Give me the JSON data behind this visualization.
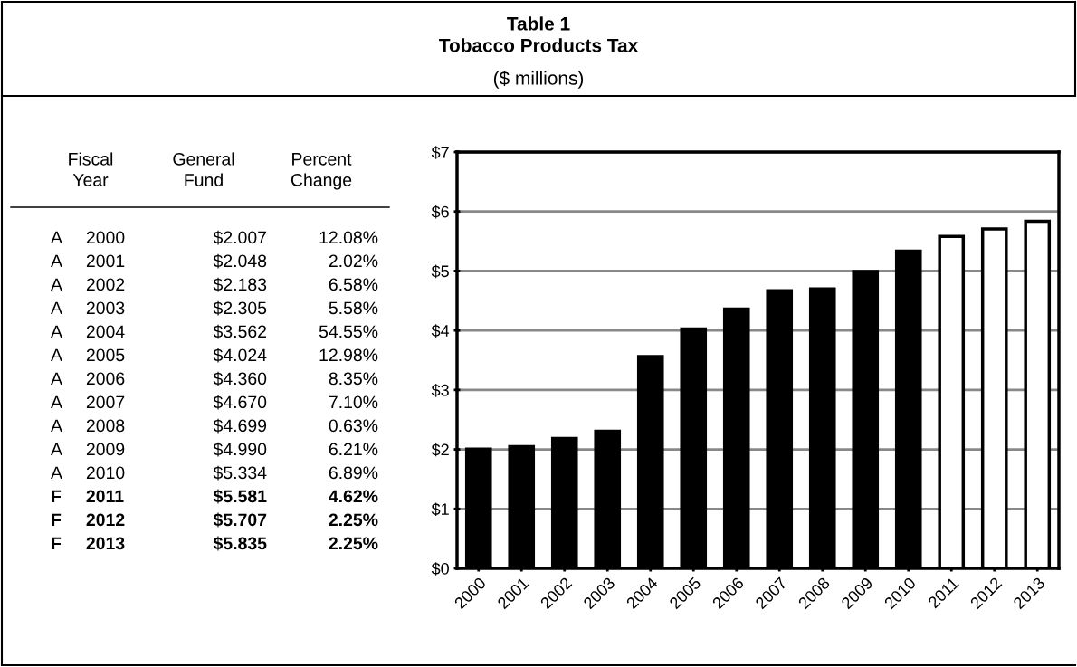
{
  "chart_data": [
    {
      "type": "other",
      "title": "Table 1\nTobacco Products Tax",
      "subtitle": "($ millions)",
      "annotations": [
        "Fiscal\nYear",
        "General\nFund",
        "Percent\nChange",
        "A     2000",
        "$2.007",
        "12.08%",
        "A     2001",
        "$2.048",
        "2.02%",
        "A     2002",
        "$2.183",
        "6.58%",
        "A     2003",
        "$2.305",
        "5.58%",
        "A     2004",
        "$3.562",
        "54.55%",
        "A     2005",
        "$4.024",
        "12.98%",
        "A     2006",
        "$4.360",
        "8.35%",
        "A     2007",
        "$4.670",
        "7.10%",
        "A     2008",
        "$4.699",
        "0.63%",
        "A     2009",
        "$4.990",
        "6.21%",
        "A     2010",
        "$5.334",
        "6.89%",
        "F     2011",
        "$5.581",
        "4.62%",
        "F     2012",
        "$5.707",
        "2.25%",
        "F     2013",
        "$5.835",
        "2.25%"
      ]
    },
    {
      "type": "bar",
      "categories": [
        "2000",
        "2001",
        "2002",
        "2003",
        "2004",
        "2005",
        "2006",
        "2007",
        "2008",
        "2009",
        "2010",
        "2011",
        "2012",
        "2013"
      ],
      "values": [
        2.007,
        2.048,
        2.183,
        2.305,
        3.562,
        4.024,
        4.36,
        4.67,
        4.699,
        4.99,
        5.334,
        5.581,
        5.707,
        5.835
      ],
      "colors": [
        "#000000",
        "#000000",
        "#000000",
        "#000000",
        "#000000",
        "#000000",
        "#000000",
        "#000000",
        "#000000",
        "#000000",
        "#000000",
        "#ffffff",
        "#ffffff",
        "#ffffff"
      ],
      "ylim": [
        0,
        7
      ],
      "yticks": [
        {
          "value": 0,
          "label": "$0"
        },
        {
          "value": 1,
          "label": "$1"
        },
        {
          "value": 2,
          "label": "$2"
        },
        {
          "value": 3,
          "label": "$3"
        },
        {
          "value": 4,
          "label": "$4"
        },
        {
          "value": 5,
          "label": "$5"
        },
        {
          "value": 6,
          "label": "$6"
        },
        {
          "value": 7,
          "label": "$7"
        }
      ],
      "grid": "y",
      "legend": false
    }
  ]
}
